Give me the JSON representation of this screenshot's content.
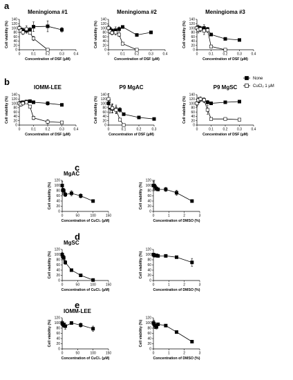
{
  "panel_labels": [
    "a",
    "b",
    "c",
    "d",
    "e"
  ],
  "legend": {
    "none": "None",
    "cucl2": "CuCl₂ 1 μM"
  },
  "chart_data": [
    {
      "type": "line",
      "panel": "a",
      "title": "Meningioma #1",
      "xlabel": "Concentration of DSF (μM)",
      "ylabel": "Cell viability (%)",
      "xlim": [
        0,
        0.4
      ],
      "ylim": [
        0,
        140
      ],
      "xticks": [
        "0",
        "0.1",
        "0.2",
        "0.3",
        "0.4"
      ],
      "yticks": [
        "0",
        "20",
        "40",
        "60",
        "80",
        "100",
        "120",
        "140"
      ],
      "series": [
        {
          "name": "None",
          "marker": "filled-square",
          "x": [
            0,
            0.01,
            0.025,
            0.05,
            0.075,
            0.1,
            0.2,
            0.3
          ],
          "y": [
            100,
            93,
            90,
            88,
            92,
            106,
            108,
            92
          ],
          "err": [
            10,
            8,
            10,
            12,
            10,
            22,
            25,
            10
          ]
        },
        {
          "name": "CuCl₂ 1 μM",
          "marker": "open-square",
          "x": [
            0,
            0.01,
            0.025,
            0.05,
            0.075,
            0.1,
            0.2
          ],
          "y": [
            100,
            88,
            80,
            95,
            78,
            52,
            0
          ],
          "err": [
            8,
            8,
            10,
            15,
            6,
            10,
            0
          ]
        }
      ]
    },
    {
      "type": "line",
      "panel": "a",
      "title": "Meningioma #2",
      "xlabel": "Concentration of DSF (μM)",
      "ylabel": "Cell viability (%)",
      "xlim": [
        0,
        0.4
      ],
      "ylim": [
        0,
        140
      ],
      "xticks": [
        "0",
        "0.1",
        "0.2",
        "0.3",
        "0.4"
      ],
      "yticks": [
        "0",
        "20",
        "40",
        "60",
        "80",
        "100",
        "120",
        "140"
      ],
      "series": [
        {
          "name": "None",
          "marker": "filled-square",
          "x": [
            0,
            0.01,
            0.025,
            0.05,
            0.075,
            0.1,
            0.2,
            0.3
          ],
          "y": [
            100,
            95,
            88,
            90,
            95,
            105,
            68,
            80
          ],
          "err": [
            12,
            10,
            8,
            15,
            10,
            5,
            4,
            4
          ]
        },
        {
          "name": "CuCl₂ 1 μM",
          "marker": "open-square",
          "x": [
            0,
            0.01,
            0.025,
            0.05,
            0.075,
            0.1,
            0.2
          ],
          "y": [
            100,
            85,
            78,
            80,
            70,
            28,
            0
          ],
          "err": [
            12,
            10,
            10,
            12,
            8,
            4,
            0
          ]
        }
      ]
    },
    {
      "type": "line",
      "panel": "a",
      "title": "Meningioma #3",
      "xlabel": "Concentration of DSF (μM)",
      "ylabel": "Cell viability (%)",
      "xlim": [
        0,
        0.4
      ],
      "ylim": [
        0,
        140
      ],
      "xticks": [
        "0",
        "0.1",
        "0.2",
        "0.3",
        "0.4"
      ],
      "yticks": [
        "0",
        "20",
        "40",
        "60",
        "80",
        "100",
        "120",
        "140"
      ],
      "series": [
        {
          "name": "None",
          "marker": "filled-square",
          "x": [
            0,
            0.01,
            0.025,
            0.05,
            0.075,
            0.1,
            0.2,
            0.3
          ],
          "y": [
            100,
            102,
            98,
            100,
            95,
            70,
            50,
            45
          ],
          "err": [
            10,
            12,
            10,
            15,
            8,
            5,
            3,
            3
          ]
        },
        {
          "name": "CuCl₂ 1 μM",
          "marker": "open-square",
          "x": [
            0,
            0.01,
            0.025,
            0.05,
            0.075,
            0.1,
            0.2
          ],
          "y": [
            100,
            92,
            95,
            88,
            90,
            15,
            0
          ],
          "err": [
            10,
            15,
            12,
            18,
            10,
            5,
            0
          ]
        }
      ]
    },
    {
      "type": "line",
      "panel": "b",
      "title": "IOMM-LEE",
      "xlabel": "Concentration of DSF (μM)",
      "ylabel": "Cell viability (%)",
      "xlim": [
        0,
        0.4
      ],
      "ylim": [
        0,
        140
      ],
      "xticks": [
        "0",
        "0.1",
        "0.2",
        "0.3",
        "0.4"
      ],
      "yticks": [
        "0",
        "20",
        "40",
        "60",
        "80",
        "100",
        "120",
        "140"
      ],
      "series": [
        {
          "name": "None",
          "marker": "filled-square",
          "x": [
            0,
            0.01,
            0.025,
            0.05,
            0.075,
            0.1,
            0.2,
            0.3
          ],
          "y": [
            100,
            103,
            105,
            108,
            110,
            105,
            100,
            93
          ],
          "err": [
            6,
            5,
            5,
            5,
            5,
            4,
            8,
            4
          ]
        },
        {
          "name": "CuCl₂ 1 μM",
          "marker": "open-square",
          "x": [
            0,
            0.01,
            0.025,
            0.05,
            0.075,
            0.1,
            0.2,
            0.3
          ],
          "y": [
            100,
            95,
            100,
            105,
            85,
            33,
            15,
            12
          ],
          "err": [
            8,
            8,
            8,
            6,
            6,
            8,
            10,
            4
          ]
        }
      ]
    },
    {
      "type": "line",
      "panel": "b",
      "title": "P9 MgAC",
      "xlabel": "Concentration of DSF (μM)",
      "ylabel": "Cell viability (%)",
      "xlim": [
        0,
        0.3
      ],
      "ylim": [
        0,
        140
      ],
      "xticks": [
        "0",
        "0.1",
        "0.2",
        "0.3"
      ],
      "yticks": [
        "0",
        "20",
        "40",
        "60",
        "80",
        "100",
        "120",
        "140"
      ],
      "series": [
        {
          "name": "None",
          "marker": "filled-square",
          "x": [
            0,
            0.01,
            0.025,
            0.05,
            0.075,
            0.1,
            0.2,
            0.3
          ],
          "y": [
            100,
            80,
            75,
            72,
            70,
            50,
            35,
            28
          ],
          "err": [
            15,
            25,
            20,
            20,
            10,
            4,
            3,
            3
          ]
        },
        {
          "name": "CuCl₂ 1 μM",
          "marker": "open-square",
          "x": [
            0,
            0.01,
            0.025,
            0.05,
            0.075,
            0.1
          ],
          "y": [
            120,
            85,
            78,
            70,
            25,
            0
          ],
          "err": [
            25,
            30,
            20,
            15,
            5,
            0
          ]
        }
      ]
    },
    {
      "type": "line",
      "panel": "b",
      "title": "P9 MgSC",
      "xlabel": "Concentration of DSF (μM)",
      "ylabel": "Cell viability (%)",
      "xlim": [
        0,
        0.4
      ],
      "ylim": [
        0,
        140
      ],
      "xticks": [
        "0",
        "0.1",
        "0.2",
        "0.3",
        "0.4"
      ],
      "yticks": [
        "0",
        "20",
        "40",
        "60",
        "80",
        "100",
        "120",
        "140"
      ],
      "series": [
        {
          "name": "None",
          "marker": "filled-square",
          "x": [
            0,
            0.01,
            0.025,
            0.05,
            0.075,
            0.1,
            0.2,
            0.3
          ],
          "y": [
            100,
            110,
            118,
            115,
            105,
            100,
            105,
            108
          ],
          "err": [
            10,
            10,
            8,
            10,
            8,
            6,
            5,
            4
          ]
        },
        {
          "name": "CuCl₂ 1 μM",
          "marker": "open-square",
          "x": [
            0,
            0.01,
            0.025,
            0.05,
            0.075,
            0.1,
            0.2,
            0.3
          ],
          "y": [
            100,
            115,
            120,
            115,
            70,
            28,
            28,
            25
          ],
          "err": [
            15,
            12,
            10,
            10,
            20,
            5,
            4,
            3
          ]
        }
      ]
    },
    {
      "type": "line",
      "panel": "c",
      "title": "MgAC",
      "xlabel": "Concentration of CuCl₂ (μM)",
      "ylabel": "Cell viability (%)",
      "xlim": [
        0,
        150
      ],
      "ylim": [
        0,
        120
      ],
      "xticks": [
        "0",
        "50",
        "100",
        "150"
      ],
      "yticks": [
        "0",
        "20",
        "40",
        "60",
        "80",
        "100",
        "120"
      ],
      "series": [
        {
          "marker": "filled-square",
          "x": [
            0,
            2,
            5,
            10,
            30,
            60,
            100
          ],
          "y": [
            100,
            82,
            80,
            65,
            70,
            60,
            40
          ],
          "err": [
            15,
            18,
            10,
            8,
            10,
            8,
            5
          ]
        }
      ]
    },
    {
      "type": "line",
      "panel": "c",
      "title": "",
      "xlabel": "Concentration of DMSO (%)",
      "ylabel": "Cell viability (%)",
      "xlim": [
        0,
        3
      ],
      "ylim": [
        0,
        120
      ],
      "xticks": [
        "0",
        "1",
        "2",
        "3"
      ],
      "yticks": [
        "0",
        "20",
        "40",
        "60",
        "80",
        "100",
        "120"
      ],
      "series": [
        {
          "marker": "filled-square",
          "x": [
            0,
            0.05,
            0.1,
            0.2,
            0.3,
            0.8,
            1.5,
            2.5
          ],
          "y": [
            100,
            100,
            95,
            88,
            85,
            85,
            72,
            40
          ],
          "err": [
            15,
            20,
            10,
            8,
            6,
            8,
            10,
            2
          ]
        }
      ]
    },
    {
      "type": "line",
      "panel": "d",
      "title": "MgSC",
      "xlabel": "Concentration of CuCl₂ (μM)",
      "ylabel": "Cell viability (%)",
      "xlim": [
        0,
        150
      ],
      "ylim": [
        0,
        120
      ],
      "xticks": [
        "0",
        "50",
        "100",
        "150"
      ],
      "yticks": [
        "0",
        "20",
        "40",
        "60",
        "80",
        "100",
        "120"
      ],
      "series": [
        {
          "marker": "filled-square",
          "x": [
            0,
            2,
            5,
            10,
            30,
            60,
            100
          ],
          "y": [
            100,
            92,
            88,
            70,
            40,
            20,
            2
          ],
          "err": [
            8,
            10,
            10,
            8,
            4,
            3,
            1
          ]
        }
      ]
    },
    {
      "type": "line",
      "panel": "d",
      "title": "",
      "xlabel": "Concentration of DMSO (%)",
      "ylabel": "Cell viability (%)",
      "xlim": [
        0,
        3
      ],
      "ylim": [
        0,
        120
      ],
      "xticks": [
        "0",
        "1",
        "2",
        "3"
      ],
      "yticks": [
        "0",
        "20",
        "40",
        "60",
        "80",
        "100",
        "120"
      ],
      "series": [
        {
          "marker": "filled-square",
          "x": [
            0,
            0.05,
            0.1,
            0.2,
            0.3,
            0.8,
            1.5,
            2.5
          ],
          "y": [
            100,
            98,
            96,
            97,
            95,
            95,
            90,
            70
          ],
          "err": [
            6,
            5,
            4,
            4,
            5,
            4,
            4,
            15
          ]
        }
      ]
    },
    {
      "type": "line",
      "panel": "e",
      "title": "IOMM-LEE",
      "xlabel": "Concentration of CuCl₂ (μM)",
      "ylabel": "Cell viability (%)",
      "xlim": [
        0,
        150
      ],
      "ylim": [
        0,
        120
      ],
      "xticks": [
        "0",
        "50",
        "100",
        "150"
      ],
      "yticks": [
        "0",
        "20",
        "40",
        "60",
        "80",
        "100",
        "120"
      ],
      "series": [
        {
          "marker": "filled-square",
          "x": [
            0,
            2,
            5,
            10,
            30,
            60,
            100
          ],
          "y": [
            100,
            95,
            92,
            88,
            100,
            92,
            78
          ],
          "err": [
            10,
            10,
            8,
            12,
            6,
            8,
            10
          ]
        }
      ]
    },
    {
      "type": "line",
      "panel": "e",
      "title": "",
      "xlabel": "Concentration of DMSO (%)",
      "ylabel": "Cell viability (%)",
      "xlim": [
        0,
        3
      ],
      "ylim": [
        0,
        120
      ],
      "xticks": [
        "0",
        "1",
        "2",
        "3"
      ],
      "yticks": [
        "0",
        "20",
        "40",
        "60",
        "80",
        "100",
        "120"
      ],
      "series": [
        {
          "marker": "filled-square",
          "x": [
            0,
            0.05,
            0.1,
            0.2,
            0.3,
            0.8,
            1.5,
            2.5
          ],
          "y": [
            100,
            95,
            90,
            85,
            95,
            90,
            65,
            28
          ],
          "err": [
            10,
            15,
            12,
            8,
            5,
            5,
            3,
            3
          ]
        }
      ]
    }
  ]
}
